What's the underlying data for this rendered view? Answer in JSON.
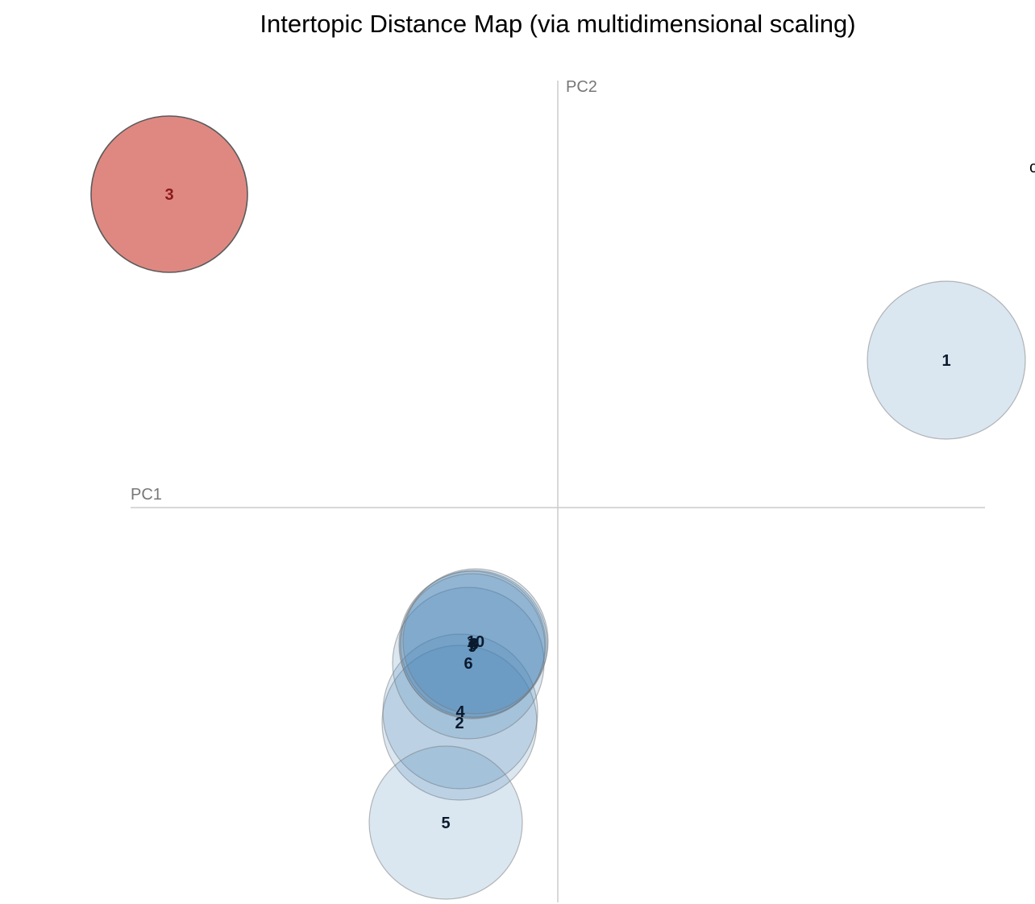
{
  "chart_data": {
    "type": "scatter",
    "title": "Intertopic Distance Map (via multidimensional scaling)",
    "xlabel": "PC1",
    "ylabel": "PC2",
    "xlim": [
      -0.53,
      0.53
    ],
    "ylim": [
      -0.49,
      0.53
    ],
    "grid": false,
    "legend": "none",
    "points": [
      {
        "label": "1",
        "x": 0.482,
        "y": 0.183,
        "size": 0.098,
        "selected": false
      },
      {
        "label": "2",
        "x": -0.122,
        "y": -0.267,
        "size": 0.096,
        "selected": false
      },
      {
        "label": "3",
        "x": -0.482,
        "y": 0.389,
        "size": 0.097,
        "selected": true
      },
      {
        "label": "4",
        "x": -0.121,
        "y": -0.253,
        "size": 0.096,
        "selected": false
      },
      {
        "label": "5",
        "x": -0.139,
        "y": -0.391,
        "size": 0.095,
        "selected": false
      },
      {
        "label": "6",
        "x": -0.111,
        "y": -0.193,
        "size": 0.094,
        "selected": false
      },
      {
        "label": "7",
        "x": -0.106,
        "y": -0.17,
        "size": 0.091,
        "selected": false
      },
      {
        "label": "8",
        "x": -0.104,
        "y": -0.169,
        "size": 0.091,
        "selected": false
      },
      {
        "label": "9",
        "x": -0.106,
        "y": -0.172,
        "size": 0.09,
        "selected": false
      },
      {
        "label": "10",
        "x": -0.102,
        "y": -0.166,
        "size": 0.09,
        "selected": false
      }
    ],
    "colors": {
      "default_fill": "#4682b4",
      "selected_fill": "#d6665f",
      "stroke": "#5a5a5a",
      "axis": "#cccccc"
    }
  },
  "edge_glyph": "c"
}
